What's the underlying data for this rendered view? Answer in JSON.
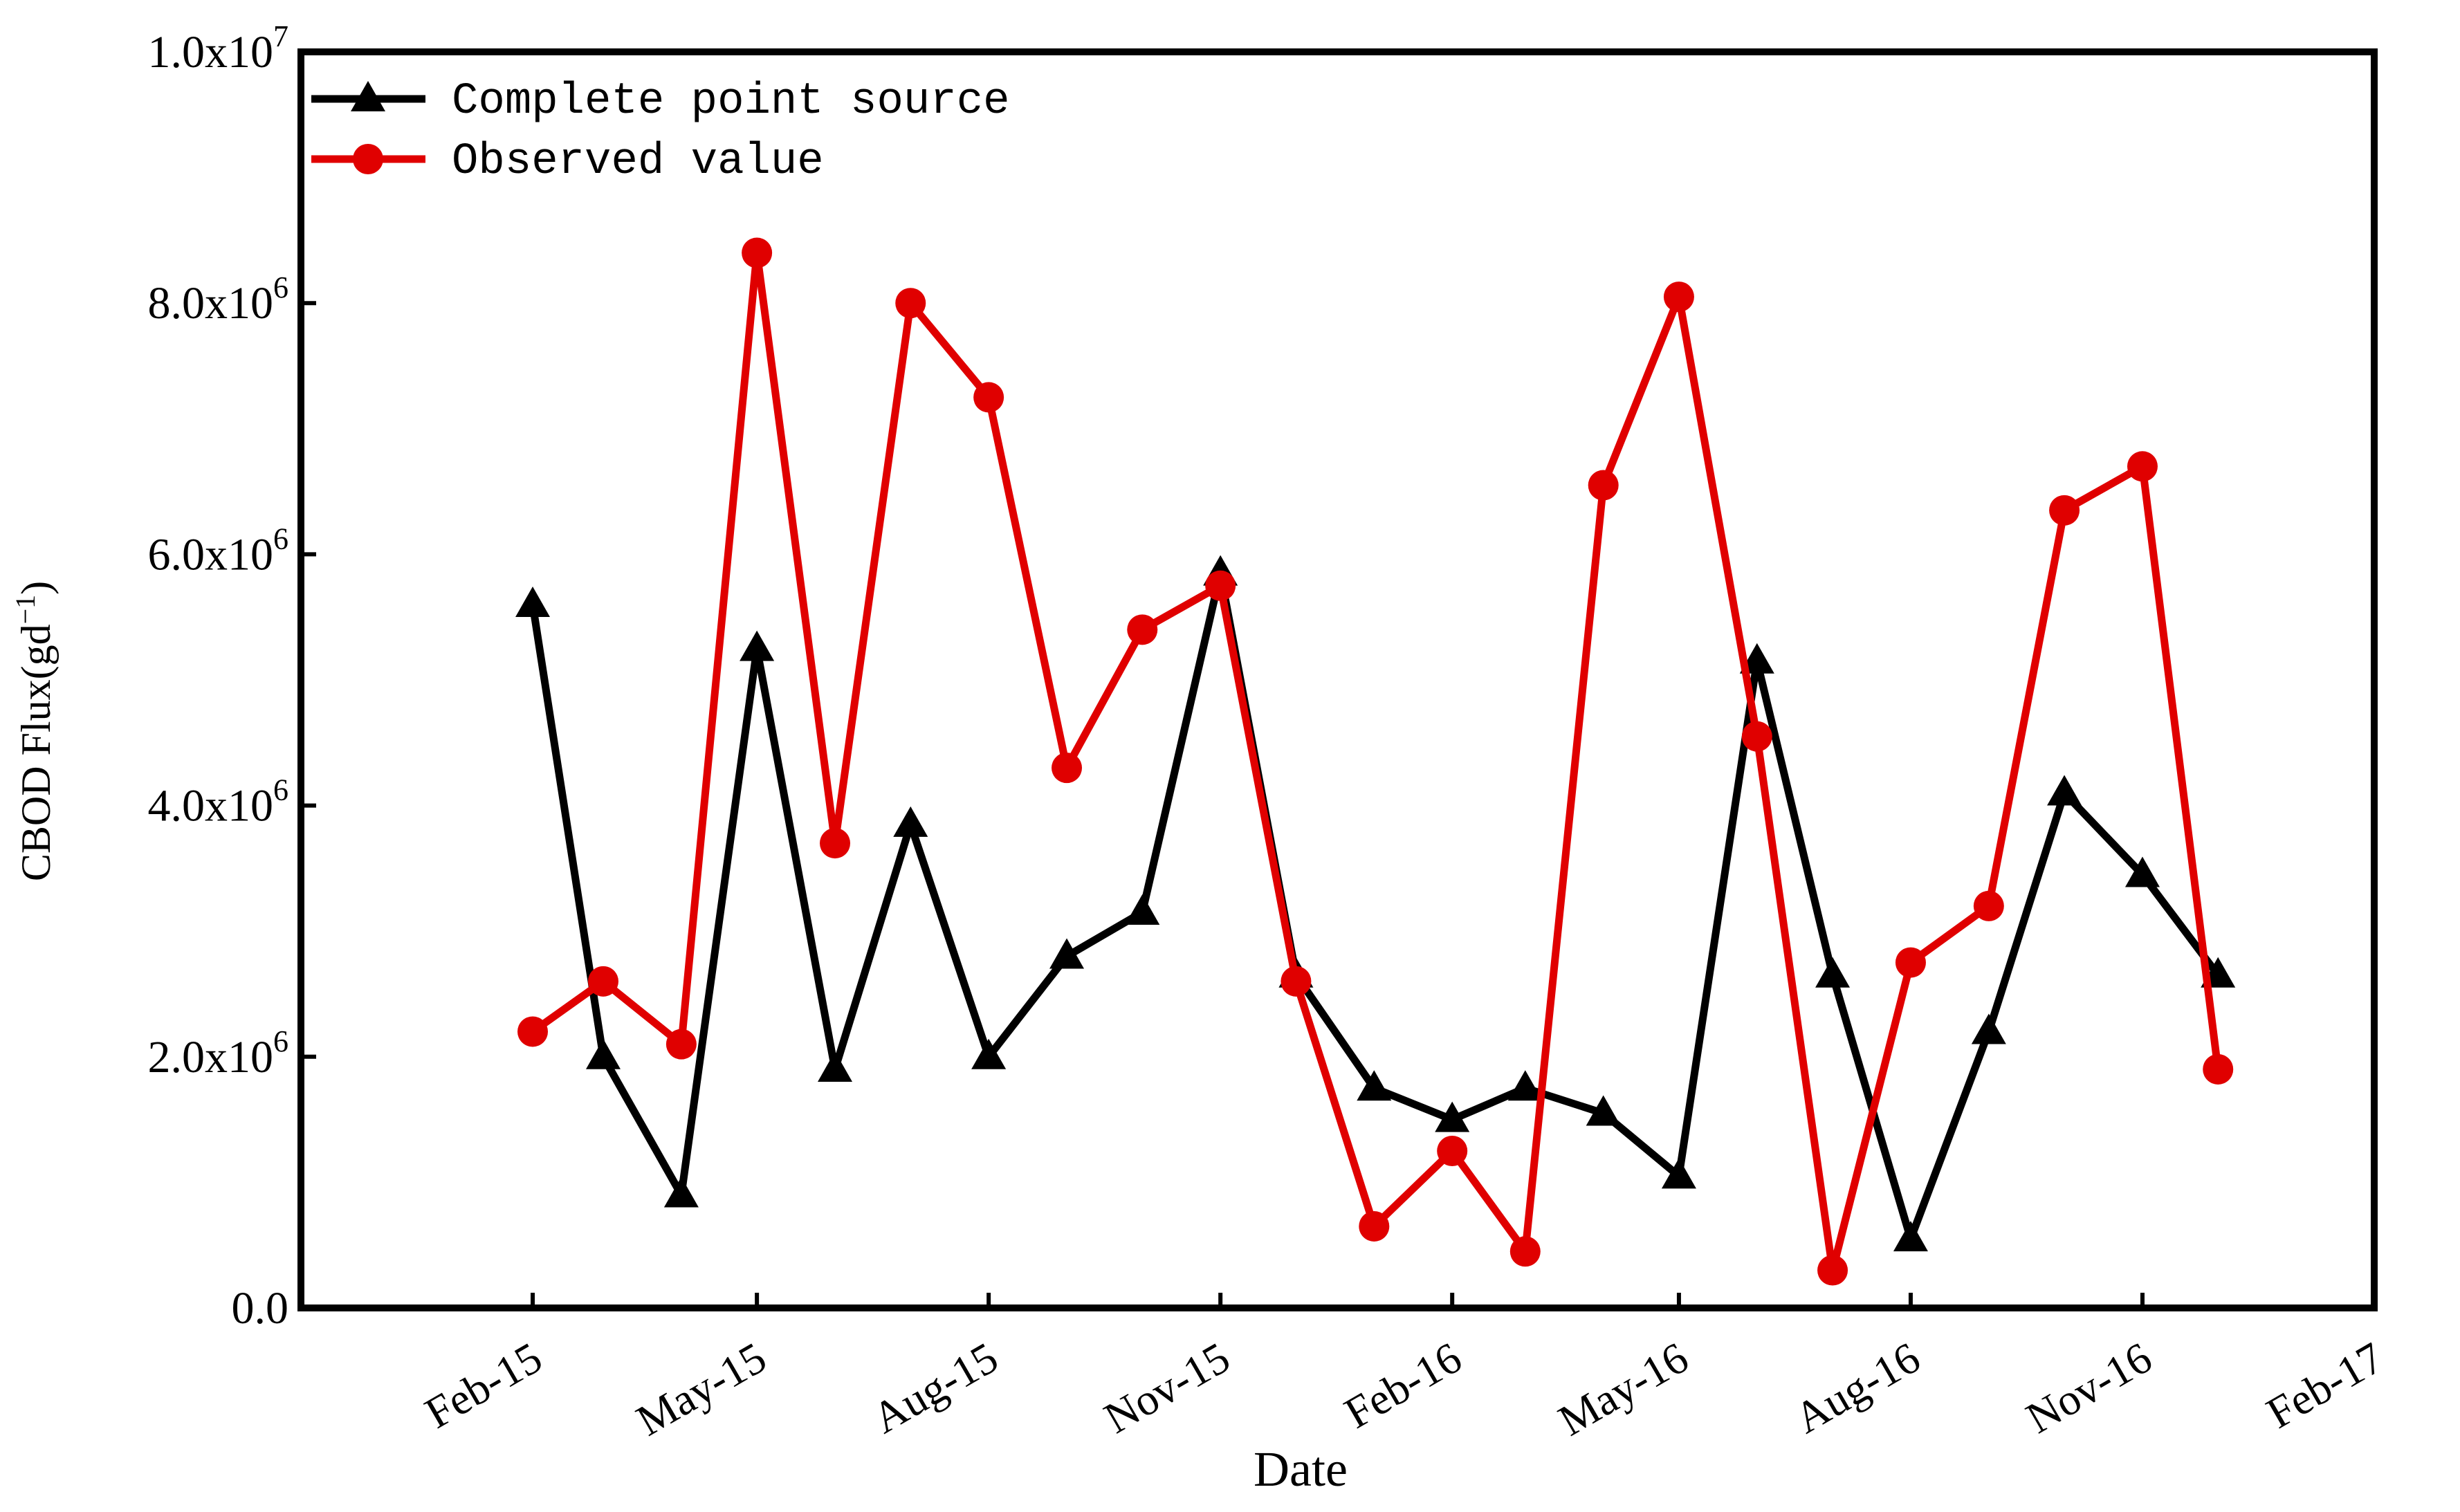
{
  "chart_data": {
    "type": "line",
    "title": "",
    "xlabel": "Date",
    "ylabel": {
      "main": "CBOD Flux",
      "unit": "gd",
      "unit_exp": "−1"
    },
    "ylim": [
      0,
      10000000
    ],
    "xlim": [
      "2014-11-01",
      "2017-02-01"
    ],
    "x_ticks": [
      "Feb-15",
      "May-15",
      "Aug-15",
      "Nov-15",
      "Feb-16",
      "May-16",
      "Aug-16",
      "Nov-16",
      "Feb-17"
    ],
    "x_tick_dates": [
      "2015-02-01",
      "2015-05-01",
      "2015-08-01",
      "2015-11-01",
      "2016-02-01",
      "2016-05-01",
      "2016-08-01",
      "2016-11-01",
      "2017-02-01"
    ],
    "y_ticks": [
      {
        "value": 0,
        "mant": "0.0",
        "exp": ""
      },
      {
        "value": 2000000,
        "mant": "2.0x10",
        "exp": "6"
      },
      {
        "value": 4000000,
        "mant": "4.0x10",
        "exp": "6"
      },
      {
        "value": 6000000,
        "mant": "6.0x10",
        "exp": "6"
      },
      {
        "value": 8000000,
        "mant": "8.0x10",
        "exp": "6"
      },
      {
        "value": 10000000,
        "mant": "1.0x10",
        "exp": "7"
      }
    ],
    "legend_position": "top-left",
    "grid": false,
    "x": [
      "2015-02-01",
      "2015-03-01",
      "2015-04-01",
      "2015-05-01",
      "2015-06-01",
      "2015-07-01",
      "2015-08-01",
      "2015-09-01",
      "2015-10-01",
      "2015-11-01",
      "2015-12-01",
      "2016-01-01",
      "2016-02-01",
      "2016-03-01",
      "2016-04-01",
      "2016-05-01",
      "2016-06-01",
      "2016-07-01",
      "2016-08-01",
      "2016-09-01",
      "2016-10-01",
      "2016-11-01",
      "2016-12-01"
    ],
    "series": [
      {
        "name": "Complete point source",
        "color": "#000000",
        "marker": "triangle",
        "values": [
          5600000,
          2000000,
          900000,
          5250000,
          1900000,
          3850000,
          2000000,
          2800000,
          3150000,
          5850000,
          2650000,
          1750000,
          1500000,
          1750000,
          1550000,
          1050000,
          5150000,
          2650000,
          550000,
          2200000,
          4100000,
          3450000,
          2650000
        ]
      },
      {
        "name": "Observed value",
        "color": "#e00000",
        "marker": "circle",
        "values": [
          2200000,
          2600000,
          2100000,
          8400000,
          3700000,
          8000000,
          7250000,
          4300000,
          5400000,
          5750000,
          2600000,
          650000,
          1250000,
          450000,
          6550000,
          8050000,
          4550000,
          300000,
          2750000,
          3200000,
          6350000,
          6700000,
          1900000
        ]
      }
    ]
  }
}
